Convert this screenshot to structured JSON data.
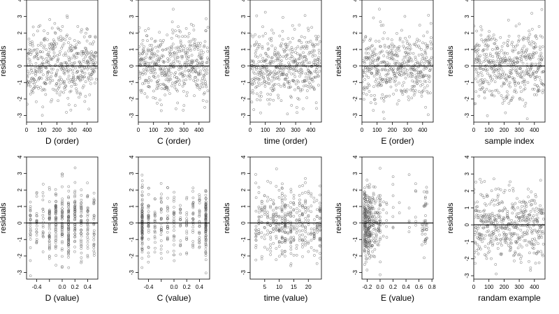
{
  "chart_data": [
    {
      "type": "scatter",
      "xlabel": "D (order)",
      "ylabel": "residuals",
      "xlim": [
        0,
        470
      ],
      "ylim": [
        -3.4,
        4
      ],
      "xticks": [
        0,
        100,
        200,
        300,
        400
      ],
      "yticks": [
        -3,
        -2,
        -1,
        0,
        1,
        2,
        3,
        4
      ],
      "hline": 0,
      "n_points": 460,
      "x_mode": "index",
      "seed": 11,
      "grid": false,
      "legend": "none"
    },
    {
      "type": "scatter",
      "xlabel": "C (order)",
      "ylabel": "residuals",
      "xlim": [
        0,
        470
      ],
      "ylim": [
        -3.4,
        4
      ],
      "xticks": [
        0,
        100,
        200,
        300,
        400
      ],
      "yticks": [
        -3,
        -2,
        -1,
        0,
        1,
        2,
        3,
        4
      ],
      "hline": 0,
      "n_points": 460,
      "x_mode": "index",
      "seed": 23,
      "grid": false,
      "legend": "none"
    },
    {
      "type": "scatter",
      "xlabel": "time (order)",
      "ylabel": "residuals",
      "xlim": [
        0,
        470
      ],
      "ylim": [
        -3.4,
        4
      ],
      "xticks": [
        0,
        100,
        200,
        300,
        400
      ],
      "yticks": [
        -3,
        -2,
        -1,
        0,
        1,
        2,
        3,
        4
      ],
      "hline": 0,
      "n_points": 460,
      "x_mode": "index",
      "seed": 37,
      "grid": false,
      "legend": "none"
    },
    {
      "type": "scatter",
      "xlabel": "E (order)",
      "ylabel": "residuals",
      "xlim": [
        0,
        470
      ],
      "ylim": [
        -3.4,
        4
      ],
      "xticks": [
        0,
        100,
        200,
        300,
        400
      ],
      "yticks": [
        -3,
        -2,
        -1,
        0,
        1,
        2,
        3,
        4
      ],
      "hline": 0,
      "n_points": 460,
      "x_mode": "index",
      "seed": 41,
      "grid": false,
      "legend": "none"
    },
    {
      "type": "scatter",
      "xlabel": "sample index",
      "ylabel": "residuals",
      "xlim": [
        0,
        470
      ],
      "ylim": [
        -3.4,
        4
      ],
      "xticks": [
        0,
        100,
        200,
        300,
        400
      ],
      "yticks": [
        -3,
        -2,
        -1,
        0,
        1,
        2,
        3,
        4
      ],
      "hline": 0,
      "n_points": 460,
      "x_mode": "index",
      "seed": 53,
      "grid": false,
      "legend": "none"
    },
    {
      "type": "scatter",
      "xlabel": "D (value)",
      "ylabel": "residuals",
      "xlim": [
        -0.56,
        0.56
      ],
      "ylim": [
        -3.4,
        4
      ],
      "xticks": [
        -0.4,
        -0.2,
        0.0,
        0.2,
        0.4
      ],
      "tick_labels": [
        "-0.4",
        "",
        "0.0",
        "0.2",
        "0.4"
      ],
      "yticks": [
        -3,
        -2,
        -1,
        0,
        1,
        2,
        3,
        4
      ],
      "hline": 0,
      "n_points": 420,
      "x_mode": "clustered",
      "x_values": [
        -0.5,
        -0.4,
        -0.3,
        -0.2,
        -0.1,
        0.0,
        0.1,
        0.2,
        0.3,
        0.4,
        0.5
      ],
      "x_weights": [
        2,
        2,
        2,
        4,
        5,
        4,
        5,
        4,
        3,
        2,
        2
      ],
      "seed": 67,
      "grid": false,
      "legend": "none"
    },
    {
      "type": "scatter",
      "xlabel": "C (value)",
      "ylabel": "residuals",
      "xlim": [
        -0.56,
        0.56
      ],
      "ylim": [
        -3.4,
        4
      ],
      "xticks": [
        -0.4,
        -0.2,
        0.0,
        0.2,
        0.4
      ],
      "tick_labels": [
        "-0.4",
        "",
        "0.0",
        "0.2",
        "0.4"
      ],
      "yticks": [
        -3,
        -2,
        -1,
        0,
        1,
        2,
        3,
        4
      ],
      "hline": 0,
      "n_points": 420,
      "x_mode": "clustered",
      "x_values": [
        -0.5,
        -0.4,
        -0.3,
        -0.2,
        -0.1,
        0.0,
        0.1,
        0.2,
        0.3,
        0.4,
        0.5
      ],
      "x_weights": [
        7,
        2,
        2,
        2,
        2,
        2,
        2,
        2,
        2,
        2,
        7
      ],
      "seed": 79,
      "grid": false,
      "legend": "none"
    },
    {
      "type": "scatter",
      "xlabel": "time (value)",
      "ylabel": "residuals",
      "xlim": [
        0,
        24.5
      ],
      "ylim": [
        -3.4,
        4
      ],
      "xticks": [
        5,
        10,
        15,
        20
      ],
      "yticks": [
        -3,
        -2,
        -1,
        0,
        1,
        2,
        3,
        4
      ],
      "hline": 0,
      "n_points": 420,
      "x_mode": "clustered",
      "x_values": [
        2,
        3,
        4,
        5,
        6,
        7,
        8,
        9,
        10,
        11,
        12,
        13,
        14,
        15,
        16,
        17,
        18,
        19,
        20,
        21,
        22,
        23,
        24
      ],
      "x_weights": [
        2,
        2,
        2,
        2,
        2,
        2,
        2,
        2,
        2,
        3,
        6,
        2,
        3,
        2,
        2,
        2,
        3,
        2,
        2,
        2,
        2,
        2,
        4
      ],
      "seed": 97,
      "grid": false,
      "legend": "none"
    },
    {
      "type": "scatter",
      "xlabel": "E (value)",
      "ylabel": "residuals",
      "xlim": [
        -0.28,
        0.82
      ],
      "ylim": [
        -3.4,
        4
      ],
      "xticks": [
        -0.2,
        0.0,
        0.2,
        0.4,
        0.6,
        0.8
      ],
      "tick_labels": [
        "-0.2",
        "0.0",
        "0.2",
        "0.4",
        "0.6",
        "0.8"
      ],
      "yticks": [
        -3,
        -2,
        -1,
        0,
        1,
        2,
        3,
        4
      ],
      "hline": 0,
      "n_points": 420,
      "x_mode": "clustered",
      "x_values": [
        -0.24,
        -0.22,
        -0.2,
        -0.18,
        -0.16,
        -0.14,
        -0.12,
        -0.1,
        -0.08,
        -0.06,
        -0.04,
        -0.02,
        0.0,
        0.05,
        0.1,
        0.2,
        0.3,
        0.45,
        0.55,
        0.65,
        0.68,
        0.7,
        0.72
      ],
      "x_weights": [
        14,
        12,
        8,
        8,
        6,
        5,
        4,
        3,
        3,
        3,
        3,
        4,
        4,
        2,
        1,
        1,
        1,
        1,
        1,
        2,
        3,
        3,
        2
      ],
      "seed": 103,
      "grid": false,
      "legend": "none"
    },
    {
      "type": "scatter",
      "xlabel": "randam example",
      "ylabel": "residuals",
      "xlim": [
        0,
        470
      ],
      "ylim": [
        -3.2,
        4
      ],
      "xticks": [
        0,
        100,
        200,
        300,
        400
      ],
      "yticks": [
        -3,
        -2,
        -1,
        0,
        1,
        2,
        3,
        4
      ],
      "hline": 0,
      "n_points": 460,
      "x_mode": "index",
      "seed": 131,
      "grid": false,
      "legend": "none"
    }
  ]
}
